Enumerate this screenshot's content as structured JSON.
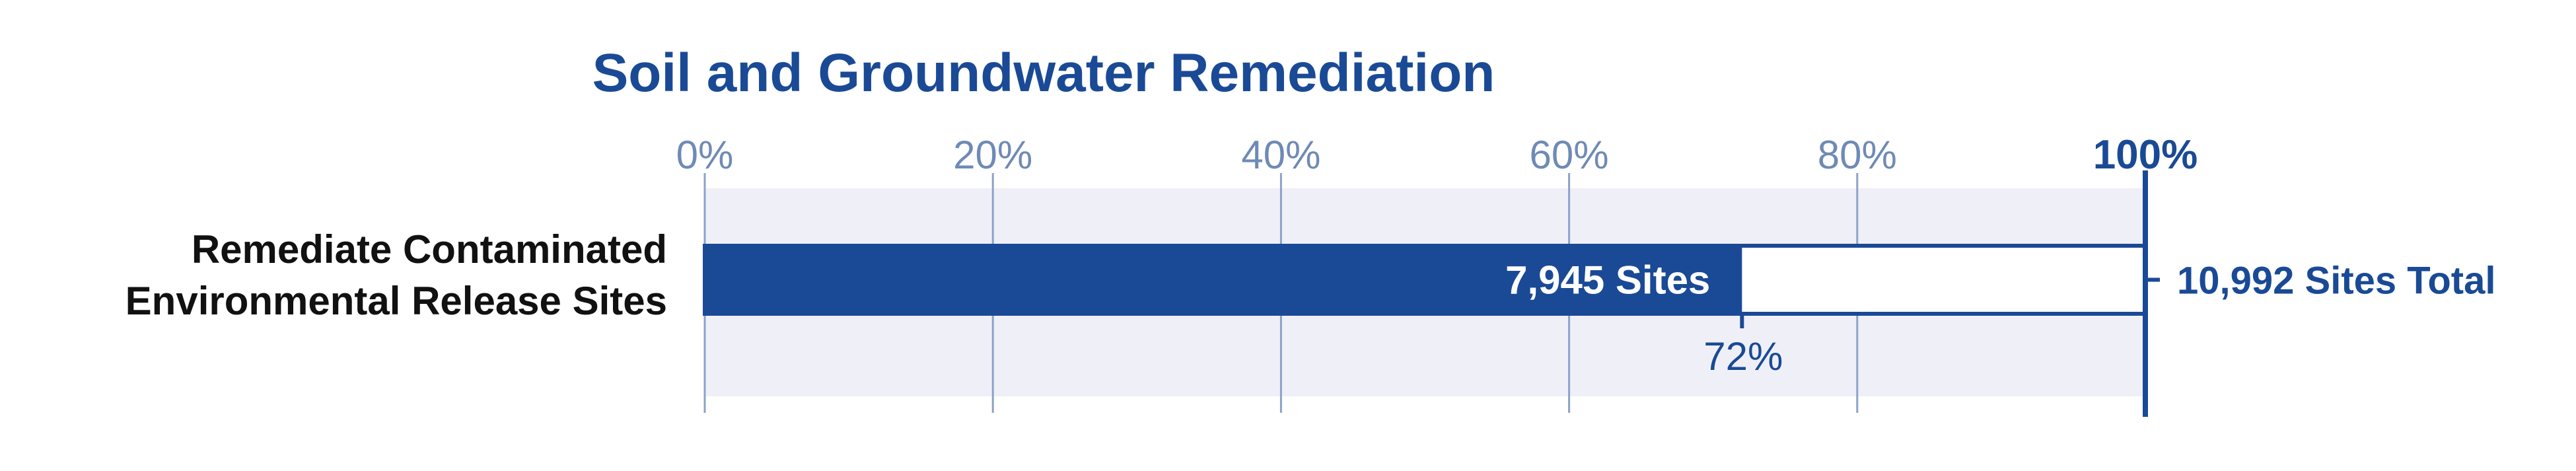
{
  "colors": {
    "primary": "#1a4a96",
    "axis_label": "#6f8ab5",
    "gridline": "#8ba3c9",
    "band": "#eff0f7",
    "bar_outline": "#1a4a96",
    "row_label": "#111111",
    "remaining_fill": "#ffffff"
  },
  "chart_data": {
    "type": "bar",
    "orientation": "horizontal",
    "title": "Soil and Groundwater Remediation",
    "x_axis": {
      "min": 0,
      "max": 100,
      "unit": "%",
      "ticks": [
        0,
        20,
        40,
        60,
        80,
        100
      ],
      "tick_labels": [
        "0%",
        "20%",
        "40%",
        "60%",
        "80%",
        "100%"
      ],
      "grid": true
    },
    "categories": [
      "Remediate Contaminated Environmental Release Sites"
    ],
    "category_label_lines": [
      "Remediate Contaminated",
      "Environmental Release Sites"
    ],
    "values": [
      72
    ],
    "completed_sites": 7945,
    "total_sites": 10992,
    "value_label": "7,945 Sites",
    "percent_label": "72%",
    "total_label": "10,992 Sites Total"
  }
}
